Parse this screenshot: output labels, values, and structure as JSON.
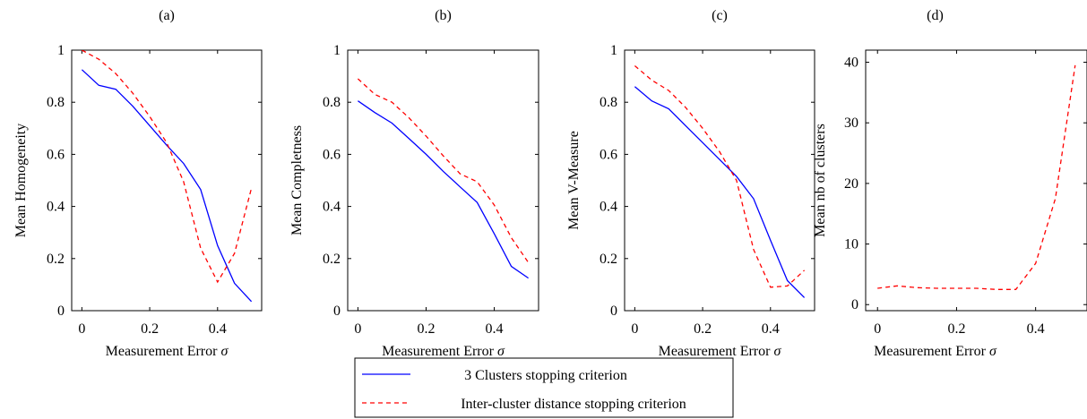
{
  "legend": {
    "placement": "bottom-center",
    "entries": [
      {
        "label": "3 Clusters stopping criterion",
        "color": "#0000ff",
        "dash": "solid"
      },
      {
        "label": "Inter-cluster distance stopping criterion",
        "color": "#ff0000",
        "dash": "dashed"
      }
    ]
  },
  "chart_data": [
    {
      "type": "line",
      "title": "(a)",
      "xlabel": "Measurement Error σ",
      "ylabel": "Mean Homogeneity",
      "xlim": [
        -0.03,
        0.53
      ],
      "ylim": [
        0,
        1
      ],
      "xticks": [
        0,
        0.2,
        0.4
      ],
      "xtick_labels": [
        "0",
        "0.2",
        "0.4"
      ],
      "yticks": [
        0,
        0.2,
        0.4,
        0.6,
        0.8,
        1
      ],
      "ytick_labels": [
        "0",
        "0.2",
        "0.4",
        "0.6",
        "0.8",
        "1"
      ],
      "series": [
        {
          "color": "#0000ff",
          "dash": "solid",
          "x": [
            0,
            0.05,
            0.1,
            0.15,
            0.2,
            0.25,
            0.3,
            0.35,
            0.4,
            0.45,
            0.5
          ],
          "y": [
            0.925,
            0.865,
            0.85,
            0.785,
            0.71,
            0.635,
            0.565,
            0.465,
            0.25,
            0.105,
            0.035
          ]
        },
        {
          "color": "#ff0000",
          "dash": "dashed",
          "x": [
            0,
            0.05,
            0.1,
            0.15,
            0.2,
            0.25,
            0.3,
            0.35,
            0.4,
            0.45,
            0.5
          ],
          "y": [
            1.0,
            0.965,
            0.91,
            0.835,
            0.745,
            0.645,
            0.495,
            0.24,
            0.11,
            0.22,
            0.47
          ]
        }
      ]
    },
    {
      "type": "line",
      "title": "(b)",
      "xlabel": "Measurement Error σ",
      "ylabel": "Mean Completness",
      "xlim": [
        -0.03,
        0.53
      ],
      "ylim": [
        0,
        1
      ],
      "xticks": [
        0,
        0.2,
        0.4
      ],
      "xtick_labels": [
        "0",
        "0.2",
        "0.4"
      ],
      "yticks": [
        0,
        0.2,
        0.4,
        0.6,
        0.8,
        1
      ],
      "ytick_labels": [
        "0",
        "0.2",
        "0.4",
        "0.6",
        "0.8",
        "1"
      ],
      "series": [
        {
          "color": "#0000ff",
          "dash": "solid",
          "x": [
            0,
            0.05,
            0.1,
            0.15,
            0.2,
            0.25,
            0.3,
            0.35,
            0.4,
            0.45,
            0.5
          ],
          "y": [
            0.805,
            0.76,
            0.72,
            0.66,
            0.6,
            0.535,
            0.475,
            0.415,
            0.295,
            0.17,
            0.125
          ]
        },
        {
          "color": "#ff0000",
          "dash": "dashed",
          "x": [
            0,
            0.05,
            0.1,
            0.15,
            0.2,
            0.25,
            0.3,
            0.35,
            0.4,
            0.45,
            0.5
          ],
          "y": [
            0.89,
            0.83,
            0.8,
            0.74,
            0.67,
            0.595,
            0.525,
            0.495,
            0.405,
            0.28,
            0.185
          ]
        }
      ]
    },
    {
      "type": "line",
      "title": "(c)",
      "xlabel": "Measurement Error σ",
      "ylabel": "Mean V-Measure",
      "xlim": [
        -0.03,
        0.53
      ],
      "ylim": [
        0,
        1
      ],
      "xticks": [
        0,
        0.2,
        0.4
      ],
      "xtick_labels": [
        "0",
        "0.2",
        "0.4"
      ],
      "yticks": [
        0,
        0.2,
        0.4,
        0.6,
        0.8,
        1
      ],
      "ytick_labels": [
        "0",
        "0.2",
        "0.4",
        "0.6",
        "0.8",
        "1"
      ],
      "series": [
        {
          "color": "#0000ff",
          "dash": "solid",
          "x": [
            0,
            0.05,
            0.1,
            0.15,
            0.2,
            0.25,
            0.3,
            0.35,
            0.4,
            0.45,
            0.5
          ],
          "y": [
            0.86,
            0.805,
            0.775,
            0.71,
            0.645,
            0.58,
            0.515,
            0.43,
            0.27,
            0.115,
            0.05
          ]
        },
        {
          "color": "#ff0000",
          "dash": "dashed",
          "x": [
            0,
            0.05,
            0.1,
            0.15,
            0.2,
            0.25,
            0.3,
            0.35,
            0.4,
            0.45,
            0.5
          ],
          "y": [
            0.94,
            0.885,
            0.845,
            0.78,
            0.7,
            0.61,
            0.5,
            0.235,
            0.09,
            0.095,
            0.155
          ]
        }
      ]
    },
    {
      "type": "line",
      "title": "(d)",
      "xlabel": "Measurement Error σ",
      "ylabel": "Mean nb of clusters",
      "xlim": [
        -0.03,
        0.53
      ],
      "ylim": [
        -1,
        42
      ],
      "xticks": [
        0,
        0.2,
        0.4
      ],
      "xtick_labels": [
        "0",
        "0.2",
        "0.4"
      ],
      "yticks": [
        0,
        10,
        20,
        30,
        40
      ],
      "ytick_labels": [
        "0",
        "10",
        "20",
        "30",
        "40"
      ],
      "series": [
        {
          "color": "#ff0000",
          "dash": "dashed",
          "x": [
            0,
            0.05,
            0.1,
            0.15,
            0.2,
            0.25,
            0.3,
            0.35,
            0.4,
            0.45,
            0.5
          ],
          "y": [
            2.7,
            3.1,
            2.8,
            2.7,
            2.7,
            2.7,
            2.5,
            2.5,
            6.8,
            17.5,
            39.5
          ]
        }
      ]
    }
  ]
}
